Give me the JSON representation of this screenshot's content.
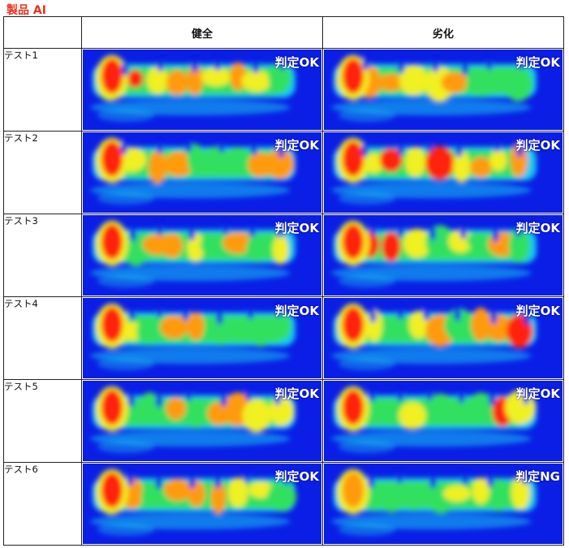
{
  "title": "製品 AI",
  "columns": [
    "健全",
    "劣化"
  ],
  "rows": [
    {
      "label": "テスト1",
      "healthy": "判定OK",
      "degraded": "判定OK"
    },
    {
      "label": "テスト2",
      "healthy": "判定OK",
      "degraded": "判定OK"
    },
    {
      "label": "テスト3",
      "healthy": "判定OK",
      "degraded": "判定OK"
    },
    {
      "label": "テスト4",
      "healthy": "判定OK",
      "degraded": "判定OK"
    },
    {
      "label": "テスト5",
      "healthy": "判定OK",
      "degraded": "判定OK"
    },
    {
      "label": "テスト6",
      "healthy": "判定OK",
      "degraded": "判定NG"
    }
  ],
  "colors": {
    "background": "#0a1ee6",
    "cyan": "#18c8f0",
    "green": "#30e060",
    "yellow": "#f0f020",
    "orange": "#ff9a10",
    "red": "#ff2010",
    "title": "#e8321e"
  },
  "image_kind": "wavelet-scalogram-heatmap"
}
